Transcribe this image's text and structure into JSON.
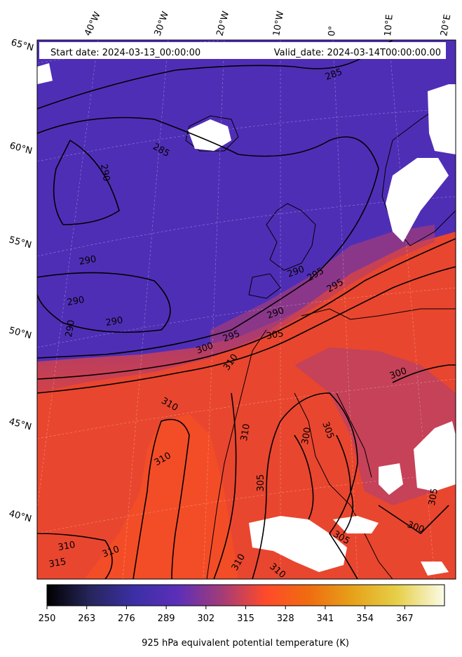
{
  "header": {
    "start_date": "Start date: 2024-03-13_00:00:00",
    "valid_date": "Valid_date: 2024-03-14T00:00:00.00"
  },
  "longitude_labels": [
    "40°W",
    "30°W",
    "20°W",
    "10°W",
    "0°",
    "10°E",
    "20°E"
  ],
  "latitude_labels": [
    "65°N",
    "60°N",
    "55°N",
    "50°N",
    "45°N",
    "40°N"
  ],
  "colorbar": {
    "ticks": [
      "250",
      "263",
      "276",
      "289",
      "302",
      "315",
      "328",
      "341",
      "354",
      "367"
    ],
    "label": "925 hPa equivalent potential temperature (K)",
    "colormap": "CMRmap",
    "colors": [
      "#000000",
      "#26265c",
      "#3c2fa6",
      "#5c2fb8",
      "#8e3c8c",
      "#ff4a2a",
      "#ef6d10",
      "#e6a21a",
      "#e6cf48",
      "#fbfbe8"
    ]
  },
  "contour_labels": [
    "285",
    "285",
    "290",
    "290",
    "290",
    "290",
    "290",
    "290",
    "295",
    "295",
    "295",
    "290",
    "300",
    "305",
    "310",
    "300",
    "310",
    "310",
    "310",
    "310",
    "315",
    "310",
    "310",
    "305",
    "305",
    "300",
    "305",
    "310",
    "300",
    "305"
  ],
  "colors": {
    "cold_air": "#4a2db4",
    "warm_air": "#f0482a",
    "contour": "#000000",
    "missing_data": "#ffffff"
  }
}
